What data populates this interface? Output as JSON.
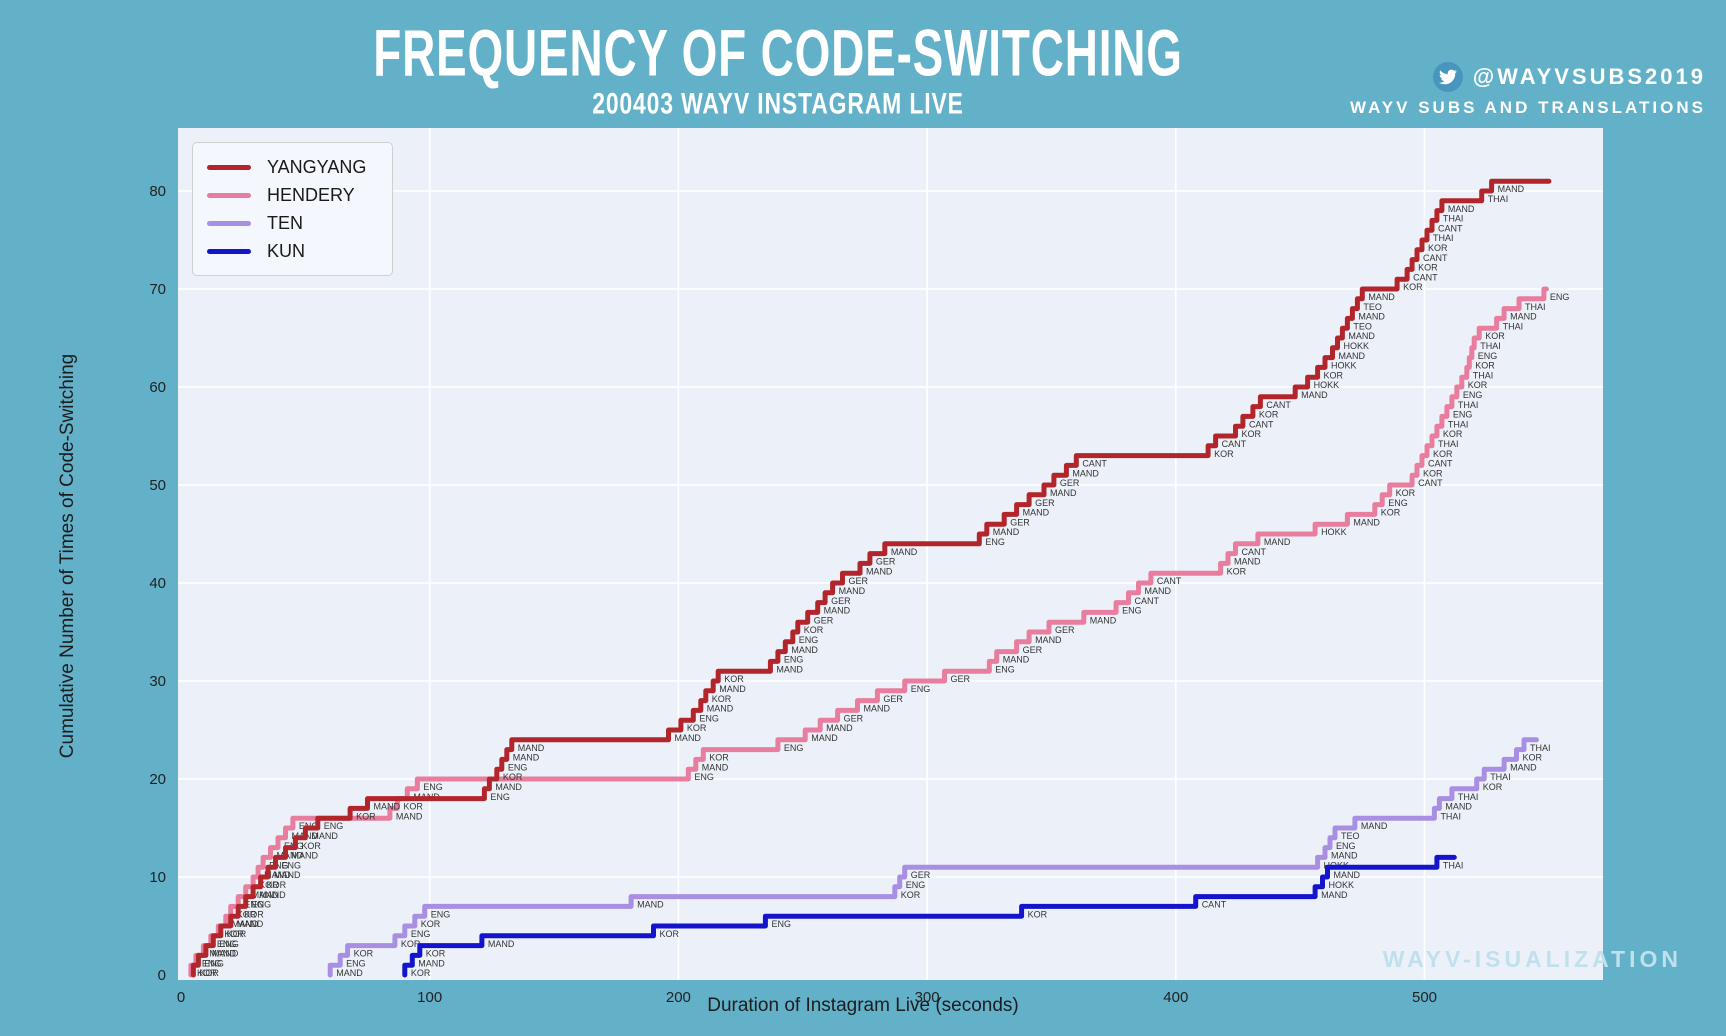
{
  "page": {
    "title": "FREQUENCY OF CODE-SWITCHING",
    "subtitle": "200403 WAYV INSTAGRAM LIVE",
    "credit_handle": "@WAYVSUBS2019",
    "credit_name": "WAYV SUBS AND TRANSLATIONS",
    "watermark": "WAYV-ISUALIZATION",
    "background_color": "#63b1c9",
    "twitter_icon": "twitter-bird"
  },
  "chart_data": {
    "type": "line",
    "style": "cumulative step chart, step-after, each step annotated with language code",
    "title": "FREQUENCY OF CODE-SWITCHING",
    "subtitle": "200403 WAYV INSTAGRAM LIVE",
    "xlabel": "Duration of Instagram Live (seconds)",
    "ylabel": "Cumulative Number of Times of Code-Switching",
    "xlim": [
      0,
      571
    ],
    "ylim": [
      0,
      86
    ],
    "x_ticks": [
      0,
      100,
      200,
      300,
      400,
      500
    ],
    "y_ticks": [
      0,
      10,
      20,
      30,
      40,
      50,
      60,
      70,
      80
    ],
    "grid": true,
    "plot_bg": "#ecf1f9",
    "grid_color": "#ffffff",
    "legend_position": "upper left",
    "annotation_color": "#333333",
    "series": [
      {
        "name": "TEN",
        "color": "#a98fe3",
        "end": 545,
        "steps": [
          [
            60,
            "MAND"
          ],
          [
            64,
            "ENG"
          ],
          [
            67,
            "KOR"
          ],
          [
            86,
            "KOR"
          ],
          [
            90,
            "ENG"
          ],
          [
            94,
            "KOR"
          ],
          [
            98,
            "ENG"
          ],
          [
            181,
            "MAND"
          ],
          [
            287,
            "KOR"
          ],
          [
            289,
            "ENG"
          ],
          [
            291,
            "GER"
          ],
          [
            457,
            "HOKK"
          ],
          [
            460,
            "MAND"
          ],
          [
            462,
            "ENG"
          ],
          [
            464,
            "TEO"
          ],
          [
            472,
            "MAND"
          ],
          [
            504,
            "THAI"
          ],
          [
            506,
            "MAND"
          ],
          [
            511,
            "THAI"
          ],
          [
            521,
            "KOR"
          ],
          [
            524,
            "THAI"
          ],
          [
            532,
            "MAND"
          ],
          [
            537,
            "KOR"
          ],
          [
            540,
            "THAI"
          ]
        ]
      },
      {
        "name": "KUN",
        "color": "#1414cc",
        "end": 512,
        "steps": [
          [
            90,
            "KOR"
          ],
          [
            93,
            "MAND"
          ],
          [
            96,
            "KOR"
          ],
          [
            121,
            "MAND"
          ],
          [
            190,
            "KOR"
          ],
          [
            235,
            "ENG"
          ],
          [
            338,
            "KOR"
          ],
          [
            408,
            "CANT"
          ],
          [
            456,
            "MAND"
          ],
          [
            459,
            "HOKK"
          ],
          [
            461,
            "MAND"
          ],
          [
            505,
            "THAI"
          ]
        ]
      },
      {
        "name": "HENDERY",
        "color": "#e87d9e",
        "end": 549,
        "steps": [
          [
            4,
            "KOR"
          ],
          [
            6,
            "ENG"
          ],
          [
            9,
            "MAND"
          ],
          [
            12,
            "ENG"
          ],
          [
            15,
            "KOR"
          ],
          [
            18,
            "MAND"
          ],
          [
            20,
            "KOR"
          ],
          [
            23,
            "ENG"
          ],
          [
            26,
            "MAND"
          ],
          [
            29,
            "KOR"
          ],
          [
            31,
            "MAND"
          ],
          [
            33,
            "ENG"
          ],
          [
            36,
            "MAND"
          ],
          [
            39,
            "ENG"
          ],
          [
            42,
            "MAND"
          ],
          [
            45,
            "ENG"
          ],
          [
            84,
            "MAND"
          ],
          [
            87,
            "KOR"
          ],
          [
            91,
            "MAND"
          ],
          [
            95,
            "ENG"
          ],
          [
            204,
            "ENG"
          ],
          [
            207,
            "MAND"
          ],
          [
            210,
            "KOR"
          ],
          [
            240,
            "ENG"
          ],
          [
            251,
            "MAND"
          ],
          [
            257,
            "MAND"
          ],
          [
            264,
            "GER"
          ],
          [
            272,
            "MAND"
          ],
          [
            280,
            "GER"
          ],
          [
            291,
            "ENG"
          ],
          [
            307,
            "GER"
          ],
          [
            325,
            "ENG"
          ],
          [
            328,
            "MAND"
          ],
          [
            336,
            "GER"
          ],
          [
            341,
            "MAND"
          ],
          [
            349,
            "GER"
          ],
          [
            363,
            "MAND"
          ],
          [
            376,
            "ENG"
          ],
          [
            381,
            "CANT"
          ],
          [
            385,
            "MAND"
          ],
          [
            390,
            "CANT"
          ],
          [
            418,
            "KOR"
          ],
          [
            421,
            "MAND"
          ],
          [
            424,
            "CANT"
          ],
          [
            433,
            "MAND"
          ],
          [
            456,
            "HOKK"
          ],
          [
            469,
            "MAND"
          ],
          [
            480,
            "KOR"
          ],
          [
            483,
            "ENG"
          ],
          [
            486,
            "KOR"
          ],
          [
            495,
            "CANT"
          ],
          [
            497,
            "KOR"
          ],
          [
            499,
            "CANT"
          ],
          [
            501,
            "KOR"
          ],
          [
            503,
            "THAI"
          ],
          [
            505,
            "KOR"
          ],
          [
            507,
            "THAI"
          ],
          [
            509,
            "ENG"
          ],
          [
            511,
            "THAI"
          ],
          [
            513,
            "ENG"
          ],
          [
            515,
            "KOR"
          ],
          [
            517,
            "THAI"
          ],
          [
            518,
            "KOR"
          ],
          [
            519,
            "ENG"
          ],
          [
            520,
            "THAI"
          ],
          [
            522,
            "KOR"
          ],
          [
            529,
            "THAI"
          ],
          [
            532,
            "MAND"
          ],
          [
            538,
            "THAI"
          ],
          [
            548,
            "ENG"
          ]
        ]
      },
      {
        "name": "YANGYANG",
        "color": "#b2262b",
        "end": 550,
        "steps": [
          [
            5,
            "KOR"
          ],
          [
            7,
            "ENG"
          ],
          [
            10,
            "MAND"
          ],
          [
            13,
            "ENG"
          ],
          [
            16,
            "KOR"
          ],
          [
            20,
            "MAND"
          ],
          [
            23,
            "KOR"
          ],
          [
            26,
            "ENG"
          ],
          [
            29,
            "MAND"
          ],
          [
            32,
            "KOR"
          ],
          [
            35,
            "MAND"
          ],
          [
            38,
            "ENG"
          ],
          [
            42,
            "MAND"
          ],
          [
            46,
            "KOR"
          ],
          [
            50,
            "MAND"
          ],
          [
            55,
            "ENG"
          ],
          [
            68,
            "KOR"
          ],
          [
            75,
            "MAND"
          ],
          [
            122,
            "ENG"
          ],
          [
            124,
            "MAND"
          ],
          [
            127,
            "KOR"
          ],
          [
            129,
            "ENG"
          ],
          [
            131,
            "MAND"
          ],
          [
            133,
            "MAND"
          ],
          [
            196,
            "MAND"
          ],
          [
            201,
            "KOR"
          ],
          [
            206,
            "ENG"
          ],
          [
            209,
            "MAND"
          ],
          [
            211,
            "KOR"
          ],
          [
            214,
            "MAND"
          ],
          [
            216,
            "KOR"
          ],
          [
            237,
            "MAND"
          ],
          [
            240,
            "ENG"
          ],
          [
            243,
            "MAND"
          ],
          [
            246,
            "ENG"
          ],
          [
            248,
            "KOR"
          ],
          [
            252,
            "GER"
          ],
          [
            256,
            "MAND"
          ],
          [
            259,
            "GER"
          ],
          [
            262,
            "MAND"
          ],
          [
            266,
            "GER"
          ],
          [
            273,
            "MAND"
          ],
          [
            277,
            "GER"
          ],
          [
            283,
            "MAND"
          ],
          [
            321,
            "ENG"
          ],
          [
            324,
            "MAND"
          ],
          [
            331,
            "GER"
          ],
          [
            336,
            "MAND"
          ],
          [
            341,
            "GER"
          ],
          [
            347,
            "MAND"
          ],
          [
            351,
            "GER"
          ],
          [
            356,
            "MAND"
          ],
          [
            360,
            "CANT"
          ],
          [
            413,
            "KOR"
          ],
          [
            416,
            "CANT"
          ],
          [
            424,
            "KOR"
          ],
          [
            427,
            "CANT"
          ],
          [
            431,
            "KOR"
          ],
          [
            434,
            "CANT"
          ],
          [
            448,
            "MAND"
          ],
          [
            453,
            "HOKK"
          ],
          [
            457,
            "KOR"
          ],
          [
            460,
            "HOKK"
          ],
          [
            463,
            "MAND"
          ],
          [
            465,
            "HOKK"
          ],
          [
            467,
            "MAND"
          ],
          [
            469,
            "TEO"
          ],
          [
            471,
            "MAND"
          ],
          [
            473,
            "TEO"
          ],
          [
            475,
            "MAND"
          ],
          [
            489,
            "KOR"
          ],
          [
            493,
            "CANT"
          ],
          [
            495,
            "KOR"
          ],
          [
            497,
            "CANT"
          ],
          [
            499,
            "KOR"
          ],
          [
            501,
            "THAI"
          ],
          [
            503,
            "CANT"
          ],
          [
            505,
            "THAI"
          ],
          [
            507,
            "MAND"
          ],
          [
            523,
            "THAI"
          ],
          [
            527,
            "MAND"
          ]
        ]
      }
    ],
    "legend_order": [
      "YANGYANG",
      "HENDERY",
      "TEN",
      "KUN"
    ]
  },
  "layout_note": "x axis seconds 0-500 ticks; y axis counts 0-80 ticks"
}
